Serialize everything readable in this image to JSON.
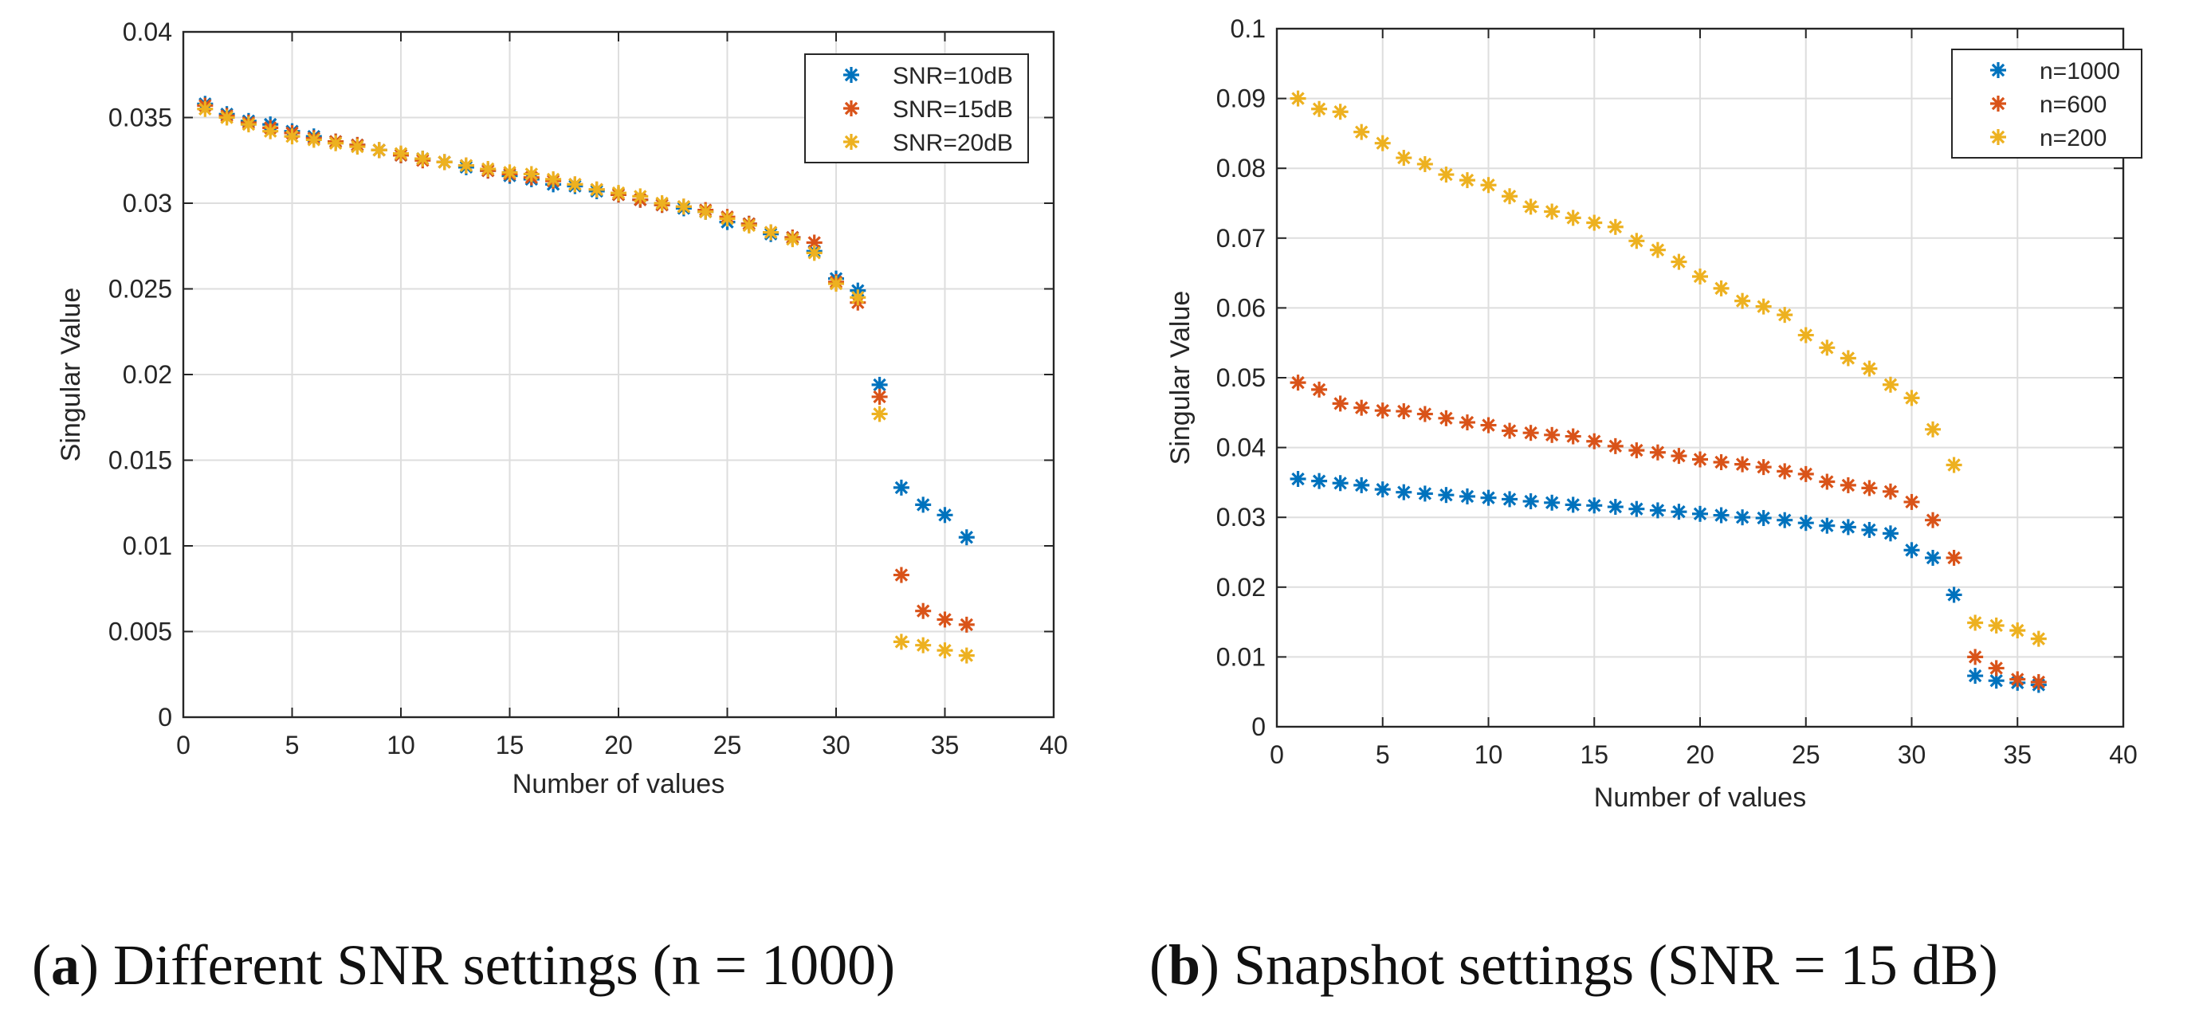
{
  "captions": {
    "a": {
      "label": "a",
      "text": "Different SNR settings (n = 1000)"
    },
    "b": {
      "label": "b",
      "text": "Snapshot settings (SNR = 15 dB)"
    }
  },
  "colors": {
    "series1": "#0072BD",
    "series2": "#D95319",
    "series3": "#EDB120"
  },
  "chart_data": [
    {
      "type": "scatter",
      "xlabel": "Number of values",
      "ylabel": "Singular Value",
      "xlim": [
        0,
        40
      ],
      "ylim": [
        0,
        0.04
      ],
      "xticks": [
        0,
        5,
        10,
        15,
        20,
        25,
        30,
        35,
        40
      ],
      "xtick_labels": [
        "0",
        "5",
        "10",
        "15",
        "20",
        "25",
        "30",
        "35",
        "40"
      ],
      "yticks": [
        0,
        0.005,
        0.01,
        0.015,
        0.02,
        0.025,
        0.03,
        0.035,
        0.04
      ],
      "ytick_labels": [
        "0",
        "0.005",
        "0.01",
        "0.015",
        "0.02",
        "0.025",
        "0.03",
        "0.035",
        "0.04"
      ],
      "grid": true,
      "legend": "top-right",
      "marker": "asterisk",
      "x": [
        1,
        2,
        3,
        4,
        5,
        6,
        7,
        8,
        9,
        10,
        11,
        12,
        13,
        14,
        15,
        16,
        17,
        18,
        19,
        20,
        21,
        22,
        23,
        24,
        25,
        26,
        27,
        28,
        29,
        30,
        31,
        32,
        33,
        34,
        35,
        36
      ],
      "series": [
        {
          "name": "SNR=10dB",
          "color": "#0072BD",
          "values": [
            0.0358,
            0.0352,
            0.0348,
            0.0346,
            0.0342,
            0.0339,
            0.0336,
            0.0334,
            0.0331,
            0.0328,
            0.0326,
            0.0324,
            0.0321,
            0.0319,
            0.0316,
            0.0314,
            0.0311,
            0.031,
            0.0307,
            0.0305,
            0.0302,
            0.0299,
            0.0297,
            0.0295,
            0.0289,
            0.0288,
            0.0282,
            0.028,
            0.0272,
            0.0256,
            0.0249,
            0.0194,
            0.0134,
            0.0124,
            0.0118,
            0.0105
          ]
        },
        {
          "name": "SNR=15dB",
          "color": "#D95319",
          "values": [
            0.0357,
            0.0351,
            0.0347,
            0.0344,
            0.0341,
            0.0338,
            0.0336,
            0.0334,
            0.0331,
            0.0328,
            0.0325,
            0.0324,
            0.0322,
            0.0319,
            0.0317,
            0.0315,
            0.0313,
            0.0311,
            0.0308,
            0.0305,
            0.0302,
            0.0299,
            0.0298,
            0.0296,
            0.0292,
            0.0288,
            0.0283,
            0.028,
            0.0277,
            0.0254,
            0.0242,
            0.0187,
            0.0083,
            0.0062,
            0.0057,
            0.0054
          ]
        },
        {
          "name": "SNR=20dB",
          "color": "#EDB120",
          "values": [
            0.0355,
            0.035,
            0.0346,
            0.0342,
            0.0339,
            0.0337,
            0.0335,
            0.0333,
            0.0331,
            0.0329,
            0.0326,
            0.0324,
            0.0322,
            0.032,
            0.0318,
            0.0317,
            0.0314,
            0.0311,
            0.0308,
            0.0306,
            0.0304,
            0.03,
            0.0298,
            0.0295,
            0.0291,
            0.0287,
            0.0283,
            0.0279,
            0.0271,
            0.0253,
            0.0245,
            0.0177,
            0.0044,
            0.0042,
            0.0039,
            0.0036
          ]
        }
      ]
    },
    {
      "type": "scatter",
      "xlabel": "Number of values",
      "ylabel": "Singular Value",
      "xlim": [
        0,
        40
      ],
      "ylim": [
        0,
        0.1
      ],
      "xticks": [
        0,
        5,
        10,
        15,
        20,
        25,
        30,
        35,
        40
      ],
      "xtick_labels": [
        "0",
        "5",
        "10",
        "15",
        "20",
        "25",
        "30",
        "35",
        "40"
      ],
      "yticks": [
        0,
        0.01,
        0.02,
        0.03,
        0.04,
        0.05,
        0.06,
        0.07,
        0.08,
        0.09,
        0.1
      ],
      "ytick_labels": [
        "0",
        "0.01",
        "0.02",
        "0.03",
        "0.04",
        "0.05",
        "0.06",
        "0.07",
        "0.08",
        "0.09",
        "0.1"
      ],
      "grid": true,
      "legend": "top-right",
      "marker": "asterisk",
      "x": [
        1,
        2,
        3,
        4,
        5,
        6,
        7,
        8,
        9,
        10,
        11,
        12,
        13,
        14,
        15,
        16,
        17,
        18,
        19,
        20,
        21,
        22,
        23,
        24,
        25,
        26,
        27,
        28,
        29,
        30,
        31,
        32,
        33,
        34,
        35,
        36
      ],
      "series": [
        {
          "name": "n=1000",
          "color": "#0072BD",
          "values": [
            0.0355,
            0.0352,
            0.0349,
            0.0346,
            0.034,
            0.0336,
            0.0334,
            0.0332,
            0.033,
            0.0328,
            0.0326,
            0.0323,
            0.0321,
            0.0318,
            0.0317,
            0.0315,
            0.0312,
            0.031,
            0.0308,
            0.0305,
            0.0303,
            0.03,
            0.0299,
            0.0296,
            0.0292,
            0.0288,
            0.0286,
            0.0282,
            0.0277,
            0.0253,
            0.0242,
            0.0189,
            0.0073,
            0.0066,
            0.0063,
            0.006
          ]
        },
        {
          "name": "n=600",
          "color": "#D95319",
          "values": [
            0.0493,
            0.0483,
            0.0463,
            0.0457,
            0.0453,
            0.0452,
            0.0448,
            0.0442,
            0.0436,
            0.0432,
            0.0424,
            0.0421,
            0.0418,
            0.0416,
            0.0409,
            0.0402,
            0.0396,
            0.0393,
            0.0388,
            0.0383,
            0.0379,
            0.0376,
            0.0372,
            0.0366,
            0.0362,
            0.0351,
            0.0346,
            0.0342,
            0.0337,
            0.0322,
            0.0296,
            0.0242,
            0.01,
            0.0084,
            0.0068,
            0.0064
          ]
        },
        {
          "name": "n=200",
          "color": "#EDB120",
          "values": [
            0.09,
            0.0885,
            0.0881,
            0.0852,
            0.0836,
            0.0815,
            0.0806,
            0.0791,
            0.0783,
            0.0776,
            0.076,
            0.0745,
            0.0738,
            0.0729,
            0.0722,
            0.0716,
            0.0696,
            0.0683,
            0.0666,
            0.0645,
            0.0628,
            0.061,
            0.0602,
            0.059,
            0.0561,
            0.0543,
            0.0528,
            0.0513,
            0.049,
            0.0471,
            0.0426,
            0.0375,
            0.0149,
            0.0145,
            0.0138,
            0.0126
          ]
        }
      ]
    }
  ]
}
